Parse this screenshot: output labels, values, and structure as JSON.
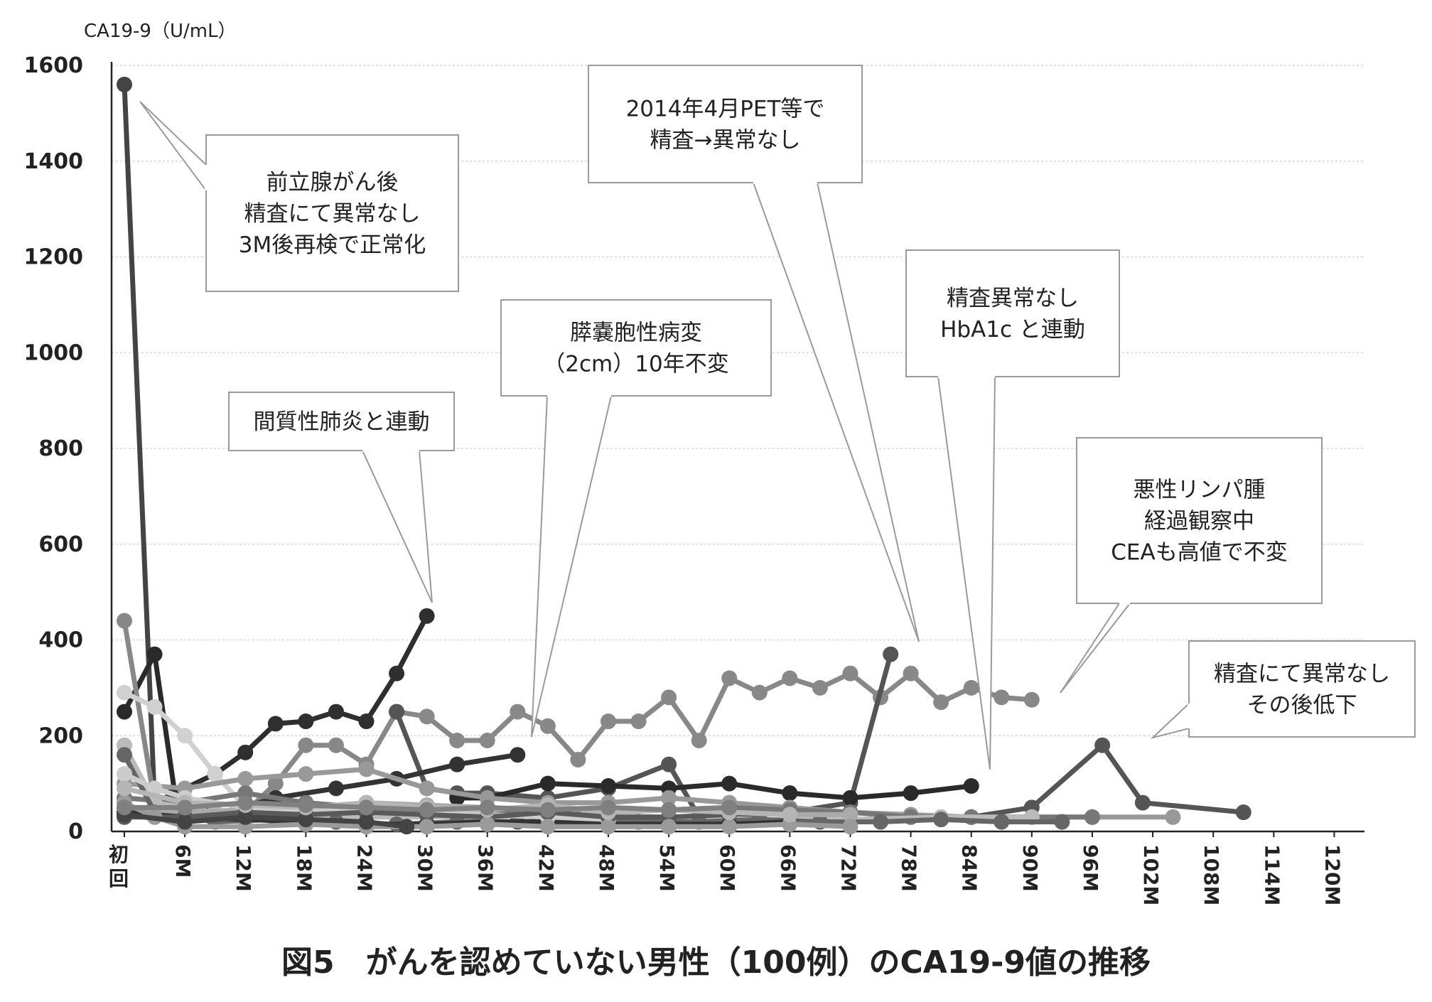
{
  "caption": "図5　がんを認めていない男性（100例）のCA19-9値の推移",
  "chart_data": {
    "type": "line",
    "ylabel": "CA19-9（U/mL）",
    "ylim": [
      0,
      1600
    ],
    "yticks": [
      0,
      200,
      400,
      600,
      800,
      1000,
      1200,
      1400,
      1600
    ],
    "x_tick_labels": [
      "初回",
      "6M",
      "12M",
      "18M",
      "24M",
      "30M",
      "36M",
      "42M",
      "48M",
      "54M",
      "60M",
      "66M",
      "72M",
      "78M",
      "84M",
      "90M",
      "96M",
      "102M",
      "108M",
      "114M",
      "120M"
    ],
    "xlim": [
      0,
      123
    ],
    "grid": true,
    "series": [
      {
        "color": "#444444",
        "points": [
          [
            0,
            1560
          ],
          [
            3,
            60
          ],
          [
            6,
            45
          ],
          [
            12,
            35
          ]
        ]
      },
      {
        "color": "#2a2a2a",
        "points": [
          [
            0,
            250
          ],
          [
            3,
            370
          ],
          [
            5,
            80
          ],
          [
            9,
            40
          ]
        ]
      },
      {
        "color": "#2f2f2f",
        "points": [
          [
            3,
            60
          ],
          [
            9,
            120
          ],
          [
            12,
            165
          ],
          [
            15,
            225
          ],
          [
            18,
            230
          ],
          [
            21,
            250
          ],
          [
            24,
            230
          ],
          [
            27,
            330
          ],
          [
            30,
            450
          ]
        ]
      },
      {
        "color": "#888888",
        "points": [
          [
            0,
            440
          ],
          [
            3,
            60
          ],
          [
            6,
            40
          ]
        ]
      },
      {
        "color": "#d0d0d0",
        "points": [
          [
            0,
            290
          ],
          [
            3,
            260
          ],
          [
            6,
            200
          ],
          [
            9,
            120
          ],
          [
            12,
            50
          ]
        ]
      },
      {
        "color": "#888888",
        "points": [
          [
            12,
            40
          ],
          [
            15,
            100
          ],
          [
            18,
            180
          ],
          [
            21,
            180
          ],
          [
            24,
            140
          ],
          [
            27,
            250
          ],
          [
            30,
            240
          ],
          [
            33,
            190
          ],
          [
            36,
            190
          ],
          [
            39,
            250
          ],
          [
            42,
            220
          ],
          [
            45,
            150
          ],
          [
            48,
            230
          ],
          [
            51,
            230
          ],
          [
            54,
            280
          ],
          [
            57,
            190
          ],
          [
            60,
            320
          ],
          [
            63,
            290
          ],
          [
            66,
            320
          ],
          [
            69,
            300
          ],
          [
            72,
            330
          ],
          [
            75,
            280
          ],
          [
            78,
            330
          ],
          [
            81,
            270
          ],
          [
            84,
            300
          ],
          [
            87,
            280
          ],
          [
            90,
            275
          ]
        ]
      },
      {
        "color": "#555555",
        "points": [
          [
            27,
            250
          ],
          [
            30,
            90
          ],
          [
            33,
            80
          ],
          [
            36,
            80
          ],
          [
            42,
            70
          ],
          [
            48,
            90
          ],
          [
            54,
            140
          ],
          [
            57,
            30
          ],
          [
            60,
            30
          ],
          [
            66,
            40
          ],
          [
            72,
            60
          ],
          [
            76,
            370
          ]
        ]
      },
      {
        "color": "#2a2a2a",
        "points": [
          [
            33,
            70
          ],
          [
            36,
            70
          ],
          [
            42,
            100
          ],
          [
            48,
            95
          ],
          [
            54,
            90
          ],
          [
            60,
            100
          ],
          [
            66,
            80
          ],
          [
            72,
            70
          ],
          [
            78,
            80
          ],
          [
            84,
            95
          ]
        ]
      },
      {
        "color": "#333333",
        "points": [
          [
            3,
            50
          ],
          [
            9,
            35
          ],
          [
            15,
            70
          ],
          [
            21,
            90
          ],
          [
            27,
            110
          ],
          [
            33,
            140
          ],
          [
            39,
            160
          ]
        ]
      },
      {
        "color": "#555555",
        "points": [
          [
            84,
            30
          ],
          [
            90,
            50
          ],
          [
            97,
            180
          ],
          [
            101,
            60
          ],
          [
            111,
            40
          ]
        ]
      },
      {
        "color": "#999999",
        "points": [
          [
            0,
            100
          ],
          [
            6,
            90
          ],
          [
            12,
            110
          ],
          [
            18,
            120
          ],
          [
            24,
            130
          ],
          [
            30,
            90
          ],
          [
            36,
            70
          ],
          [
            42,
            60
          ],
          [
            48,
            60
          ],
          [
            54,
            70
          ],
          [
            60,
            60
          ],
          [
            66,
            50
          ],
          [
            72,
            40
          ],
          [
            78,
            35
          ],
          [
            84,
            30
          ],
          [
            90,
            30
          ],
          [
            96,
            30
          ],
          [
            104,
            30
          ]
        ]
      },
      {
        "color": "#777777",
        "points": [
          [
            0,
            70
          ],
          [
            6,
            60
          ],
          [
            12,
            80
          ],
          [
            18,
            60
          ],
          [
            24,
            50
          ],
          [
            30,
            40
          ],
          [
            36,
            40
          ],
          [
            42,
            35
          ],
          [
            48,
            40
          ],
          [
            54,
            45
          ],
          [
            60,
            50
          ],
          [
            66,
            45
          ],
          [
            72,
            40
          ],
          [
            78,
            30
          ],
          [
            84,
            30
          ],
          [
            90,
            30
          ],
          [
            96,
            30
          ]
        ]
      },
      {
        "color": "#bbbbbb",
        "points": [
          [
            0,
            180
          ],
          [
            3,
            60
          ],
          [
            9,
            40
          ],
          [
            18,
            30
          ],
          [
            27,
            30
          ],
          [
            36,
            30
          ],
          [
            45,
            35
          ],
          [
            54,
            30
          ],
          [
            63,
            25
          ],
          [
            72,
            25
          ],
          [
            81,
            30
          ],
          [
            90,
            30
          ]
        ]
      },
      {
        "color": "#666666",
        "points": [
          [
            0,
            160
          ],
          [
            3,
            40
          ],
          [
            9,
            20
          ],
          [
            15,
            25
          ],
          [
            21,
            20
          ],
          [
            27,
            15
          ],
          [
            33,
            20
          ],
          [
            39,
            20
          ],
          [
            45,
            25
          ],
          [
            51,
            20
          ],
          [
            57,
            20
          ],
          [
            63,
            25
          ],
          [
            69,
            20
          ],
          [
            75,
            20
          ],
          [
            81,
            25
          ],
          [
            87,
            20
          ],
          [
            93,
            20
          ]
        ]
      },
      {
        "color": "#aaaaaa",
        "points": [
          [
            0,
            50
          ],
          [
            6,
            40
          ],
          [
            12,
            45
          ],
          [
            18,
            50
          ],
          [
            24,
            60
          ],
          [
            30,
            55
          ],
          [
            36,
            50
          ],
          [
            42,
            45
          ],
          [
            48,
            50
          ],
          [
            54,
            45
          ],
          [
            60,
            40
          ],
          [
            66,
            35
          ],
          [
            72,
            35
          ]
        ]
      },
      {
        "color": "#333333",
        "points": [
          [
            0,
            40
          ],
          [
            6,
            30
          ],
          [
            12,
            25
          ],
          [
            18,
            20
          ],
          [
            24,
            15
          ],
          [
            30,
            15
          ],
          [
            36,
            20
          ],
          [
            42,
            20
          ],
          [
            48,
            15
          ],
          [
            54,
            15
          ],
          [
            60,
            15
          ],
          [
            66,
            20
          ]
        ]
      },
      {
        "color": "#cccccc",
        "points": [
          [
            0,
            120
          ],
          [
            3,
            90
          ],
          [
            6,
            70
          ],
          [
            12,
            50
          ],
          [
            18,
            45
          ],
          [
            24,
            40
          ],
          [
            30,
            40
          ],
          [
            36,
            35
          ],
          [
            42,
            30
          ],
          [
            48,
            25
          ]
        ]
      },
      {
        "color": "#5a5a5a",
        "points": [
          [
            0,
            30
          ],
          [
            6,
            30
          ],
          [
            12,
            40
          ],
          [
            18,
            35
          ],
          [
            24,
            40
          ],
          [
            30,
            35
          ],
          [
            36,
            30
          ],
          [
            42,
            40
          ],
          [
            48,
            30
          ],
          [
            54,
            30
          ],
          [
            60,
            35
          ]
        ]
      },
      {
        "color": "#9a9a9a",
        "points": [
          [
            0,
            60
          ],
          [
            3,
            30
          ],
          [
            6,
            10
          ],
          [
            12,
            10
          ],
          [
            18,
            15
          ],
          [
            24,
            10
          ],
          [
            30,
            10
          ],
          [
            36,
            15
          ],
          [
            42,
            10
          ],
          [
            48,
            10
          ],
          [
            54,
            10
          ],
          [
            60,
            10
          ],
          [
            66,
            15
          ],
          [
            72,
            10
          ]
        ]
      },
      {
        "color": "#444444",
        "points": [
          [
            0,
            35
          ],
          [
            6,
            20
          ],
          [
            12,
            30
          ],
          [
            18,
            25
          ],
          [
            24,
            20
          ],
          [
            28,
            10
          ]
        ]
      },
      {
        "color": "#b5b5b5",
        "points": [
          [
            0,
            90
          ],
          [
            6,
            60
          ],
          [
            12,
            55
          ],
          [
            18,
            50
          ],
          [
            24,
            60
          ],
          [
            30,
            50
          ],
          [
            36,
            45
          ],
          [
            42,
            55
          ],
          [
            48,
            40
          ],
          [
            54,
            45
          ],
          [
            60,
            40
          ],
          [
            66,
            35
          ]
        ]
      },
      {
        "color": "#808080",
        "points": [
          [
            0,
            50
          ],
          [
            6,
            50
          ],
          [
            12,
            60
          ],
          [
            18,
            55
          ],
          [
            24,
            50
          ],
          [
            30,
            45
          ],
          [
            36,
            50
          ],
          [
            42,
            45
          ],
          [
            48,
            50
          ],
          [
            54,
            45
          ],
          [
            60,
            50
          ]
        ]
      }
    ]
  },
  "callouts": [
    {
      "lines": [
        "前立腺がん後",
        "精査にて異常なし",
        "3M後再検で正常化"
      ]
    },
    {
      "lines": [
        "2014年4月PET等で",
        "精査→異常なし"
      ]
    },
    {
      "lines": [
        "精査異常なし",
        "HbA1c と連動"
      ]
    },
    {
      "lines": [
        "膵嚢胞性病変",
        "（2cm）10年不変"
      ]
    },
    {
      "lines": [
        "間質性肺炎と連動"
      ]
    },
    {
      "lines": [
        "悪性リンパ腫",
        "経過観察中",
        "CEAも高値で不変"
      ]
    },
    {
      "lines": [
        "精査にて異常なし",
        "その後低下"
      ]
    }
  ]
}
